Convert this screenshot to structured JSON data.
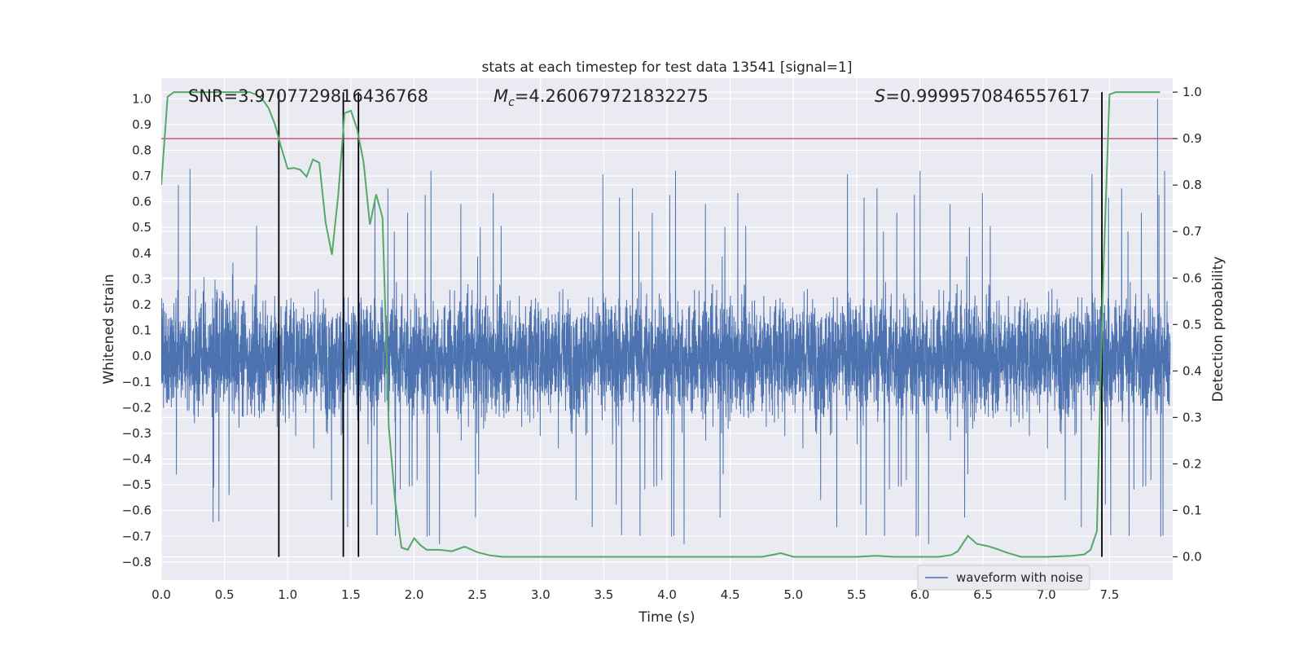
{
  "chart_data": {
    "type": "line",
    "title": "stats at each timestep for test data 13541 [signal=1]",
    "xlabel": "Time (s)",
    "ylabel_left": "Whitened strain",
    "ylabel_right": "Detection probability",
    "xlim": [
      0.0,
      8.0
    ],
    "ylim_left": [
      -0.87,
      1.08
    ],
    "ylim_right": [
      -0.05,
      1.03
    ],
    "x_ticks": [
      "0.0",
      "0.5",
      "1.0",
      "1.5",
      "2.0",
      "2.5",
      "3.0",
      "3.5",
      "4.0",
      "4.5",
      "5.0",
      "5.5",
      "6.0",
      "6.5",
      "7.0",
      "7.5"
    ],
    "y_ticks_left": [
      "1.0",
      "0.9",
      "0.8",
      "0.7",
      "0.6",
      "0.5",
      "0.4",
      "0.3",
      "0.2",
      "0.1",
      "0.0",
      "−0.1",
      "−0.2",
      "−0.3",
      "−0.4",
      "−0.5",
      "−0.6",
      "−0.7",
      "−0.8"
    ],
    "y_ticks_right": [
      "1.0",
      "0.9",
      "0.8",
      "0.7",
      "0.6",
      "0.5",
      "0.4",
      "0.3",
      "0.2",
      "0.1",
      "0.0"
    ],
    "annotations": {
      "snr": "SNR=3.9707729816436768",
      "mc_symbol": "M",
      "mc_subscript": "c",
      "mc_value": "=4.260679721832275",
      "s_symbol": "S",
      "s_value": "=0.9999570846557617"
    },
    "legend": {
      "location": "lower-right",
      "entries": [
        "waveform with noise"
      ]
    },
    "grid": true,
    "colors": {
      "strain": "#4c72b0",
      "probability": "#55a868",
      "threshold": "#c44e52",
      "markers": "#000000",
      "plot_bg": "#eaeaf2",
      "grid": "#ffffff"
    },
    "threshold_right": 0.9,
    "vertical_markers_s": [
      0.93,
      1.44,
      1.56,
      7.44
    ],
    "strain_noise_envelope": {
      "typical_max": 0.45,
      "typical_min": -0.45,
      "max_peak": 1.0,
      "max_peak_at_s": 7.88,
      "min_peak": -0.78
    },
    "detection_probability": {
      "x": [
        0.0,
        0.05,
        0.1,
        0.15,
        0.2,
        0.25,
        0.3,
        0.35,
        0.4,
        0.45,
        0.5,
        0.55,
        0.6,
        0.65,
        0.7,
        0.75,
        0.8,
        0.85,
        0.9,
        0.95,
        1.0,
        1.05,
        1.1,
        1.15,
        1.2,
        1.25,
        1.3,
        1.35,
        1.4,
        1.45,
        1.5,
        1.55,
        1.6,
        1.65,
        1.7,
        1.75,
        1.8,
        1.85,
        1.9,
        1.95,
        2.0,
        2.05,
        2.1,
        2.2,
        2.3,
        2.4,
        2.5,
        2.6,
        2.7,
        2.8,
        2.9,
        3.0,
        3.5,
        4.0,
        4.5,
        4.75,
        4.85,
        4.9,
        5.0,
        5.5,
        5.65,
        5.8,
        6.0,
        6.15,
        6.25,
        6.3,
        6.38,
        6.45,
        6.55,
        6.62,
        6.7,
        6.8,
        7.0,
        7.2,
        7.3,
        7.35,
        7.4,
        7.45,
        7.5,
        7.55,
        7.6,
        7.7,
        7.8,
        7.9
      ],
      "y": [
        0.8,
        0.99,
        1.0,
        1.0,
        1.0,
        1.0,
        1.0,
        1.0,
        1.0,
        1.0,
        1.0,
        1.0,
        1.0,
        1.0,
        1.0,
        0.995,
        0.985,
        0.965,
        0.93,
        0.88,
        0.835,
        0.837,
        0.833,
        0.818,
        0.855,
        0.848,
        0.72,
        0.65,
        0.78,
        0.955,
        0.96,
        0.92,
        0.85,
        0.715,
        0.78,
        0.73,
        0.28,
        0.12,
        0.02,
        0.015,
        0.04,
        0.025,
        0.015,
        0.015,
        0.012,
        0.022,
        0.01,
        0.003,
        0.0,
        0.0,
        0.0,
        0.0,
        0.0,
        0.0,
        0.0,
        0.0,
        0.005,
        0.008,
        0.0,
        0.0,
        0.002,
        0.0,
        0.0,
        0.0,
        0.004,
        0.012,
        0.045,
        0.028,
        0.022,
        0.016,
        0.008,
        0.0,
        0.0,
        0.002,
        0.005,
        0.015,
        0.055,
        0.6,
        0.995,
        1.0,
        1.0,
        1.0,
        1.0,
        1.0
      ]
    }
  }
}
